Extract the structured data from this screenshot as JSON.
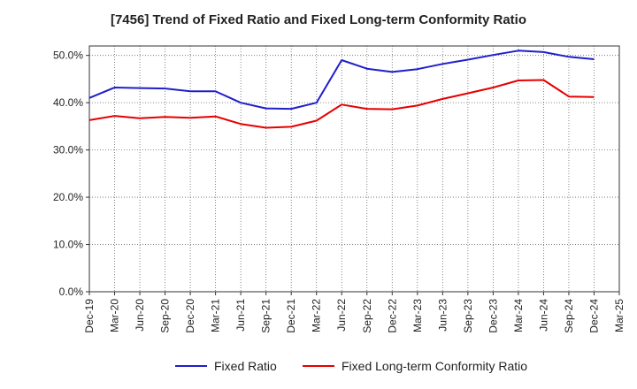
{
  "chart_data": {
    "type": "line",
    "title": "[7456]  Trend of Fixed Ratio and Fixed Long-term Conformity Ratio",
    "xlabel": "",
    "ylabel": "",
    "categories": [
      "Dec-19",
      "Mar-20",
      "Jun-20",
      "Sep-20",
      "Dec-20",
      "Mar-21",
      "Jun-21",
      "Sep-21",
      "Dec-21",
      "Mar-22",
      "Jun-22",
      "Sep-22",
      "Dec-22",
      "Mar-23",
      "Jun-23",
      "Sep-23",
      "Dec-23",
      "Mar-24",
      "Jun-24",
      "Sep-24",
      "Dec-24",
      "Mar-25"
    ],
    "ylim": [
      0,
      52
    ],
    "yticks": [
      0,
      10,
      20,
      30,
      40,
      50
    ],
    "ytick_labels": [
      "0.0%",
      "10.0%",
      "20.0%",
      "30.0%",
      "40.0%",
      "50.0%"
    ],
    "grid": true,
    "legend_position": "bottom",
    "series": [
      {
        "name": "Fixed Ratio",
        "color": "#1f1fcc",
        "values": [
          41.0,
          43.2,
          43.1,
          43.0,
          42.4,
          42.4,
          40.0,
          38.8,
          38.7,
          40.0,
          49.0,
          47.2,
          46.5,
          47.1,
          48.2,
          49.1,
          50.1,
          51.0,
          50.7,
          49.7,
          49.2,
          null
        ]
      },
      {
        "name": "Fixed Long-term Conformity Ratio",
        "color": "#e60000",
        "values": [
          36.3,
          37.2,
          36.7,
          37.0,
          36.8,
          37.1,
          35.5,
          34.7,
          34.9,
          36.2,
          39.6,
          38.7,
          38.6,
          39.4,
          40.8,
          42.0,
          43.2,
          44.7,
          44.8,
          41.3,
          41.2,
          null
        ]
      }
    ]
  }
}
